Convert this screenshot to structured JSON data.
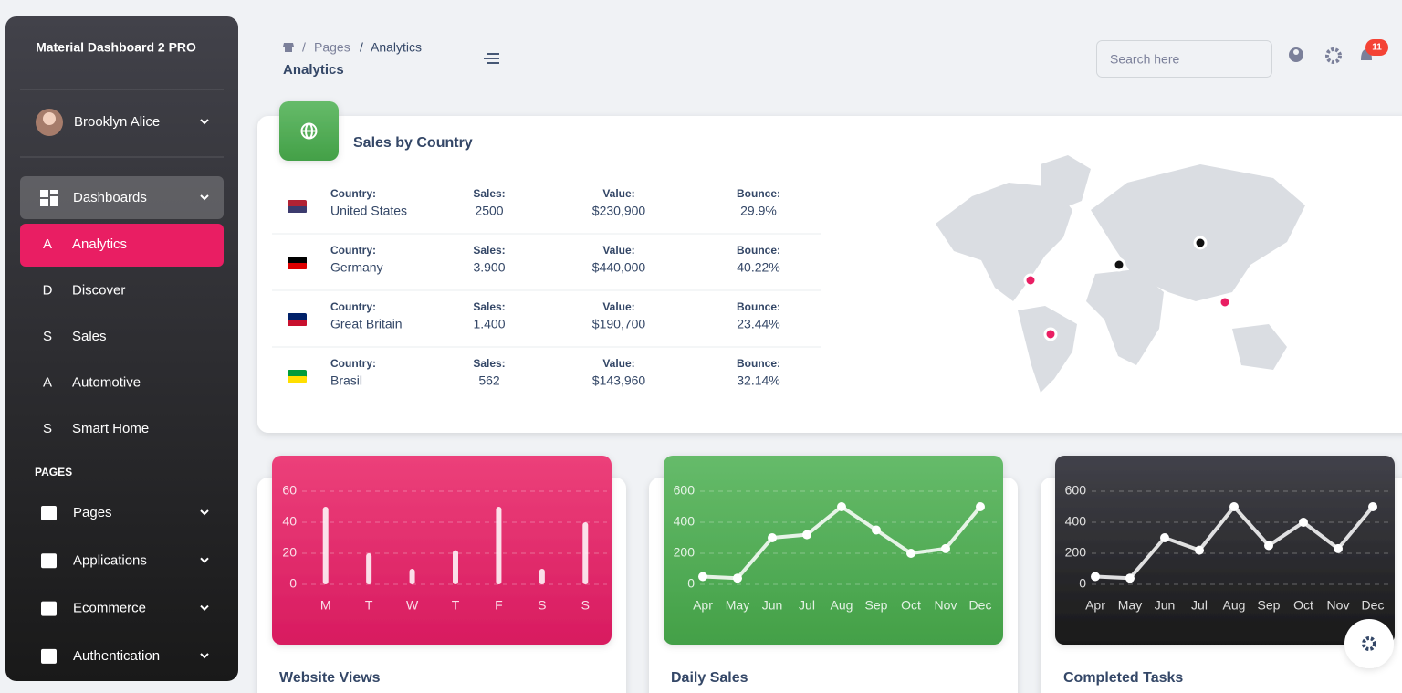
{
  "sidebar": {
    "brand": "Material Dashboard 2 PRO",
    "user": "Brooklyn Alice",
    "group": "Dashboards",
    "dashboards": [
      {
        "letter": "A",
        "label": "Analytics"
      },
      {
        "letter": "D",
        "label": "Discover"
      },
      {
        "letter": "S",
        "label": "Sales"
      },
      {
        "letter": "A",
        "label": "Automotive"
      },
      {
        "letter": "S",
        "label": "Smart Home"
      }
    ],
    "section": "PAGES",
    "pages": [
      "Pages",
      "Applications",
      "Ecommerce",
      "Authentication"
    ]
  },
  "header": {
    "separator": "/",
    "breadcrumb": [
      "Pages",
      "Analytics"
    ],
    "title": "Analytics",
    "search_placeholder": "Search here",
    "notifications": "11"
  },
  "sales_by_country": {
    "title": "Sales by Country",
    "column_labels": {
      "country": "Country:",
      "sales": "Sales:",
      "value": "Value:",
      "bounce": "Bounce:"
    },
    "rows": [
      {
        "country": "United States",
        "sales": "2500",
        "value": "$230,900",
        "bounce": "29.9%"
      },
      {
        "country": "Germany",
        "sales": "3.900",
        "value": "$440,000",
        "bounce": "40.22%"
      },
      {
        "country": "Great Britain",
        "sales": "1.400",
        "value": "$190,700",
        "bounce": "23.44%"
      },
      {
        "country": "Brasil",
        "sales": "562",
        "value": "$143,960",
        "bounce": "32.14%"
      }
    ]
  },
  "chart_data": [
    {
      "type": "bar",
      "title": "Website Views",
      "color": "#ffffff",
      "grid": true,
      "categories": [
        "M",
        "T",
        "W",
        "T",
        "F",
        "S",
        "S"
      ],
      "values": [
        50,
        20,
        10,
        22,
        50,
        10,
        40
      ],
      "ylim": [
        0,
        60
      ],
      "yticks": [
        0,
        20,
        40,
        60
      ]
    },
    {
      "type": "line",
      "title": "Daily Sales",
      "color": "#ffffff",
      "grid": true,
      "categories": [
        "Apr",
        "May",
        "Jun",
        "Jul",
        "Aug",
        "Sep",
        "Oct",
        "Nov",
        "Dec"
      ],
      "values": [
        50,
        40,
        300,
        320,
        500,
        350,
        200,
        230,
        500
      ],
      "ylim": [
        0,
        600
      ],
      "yticks": [
        0,
        200,
        400,
        600
      ]
    },
    {
      "type": "line",
      "title": "Completed Tasks",
      "color": "#ffffff",
      "grid": true,
      "categories": [
        "Apr",
        "May",
        "Jun",
        "Jul",
        "Aug",
        "Sep",
        "Oct",
        "Nov",
        "Dec"
      ],
      "values": [
        50,
        40,
        300,
        220,
        500,
        250,
        400,
        230,
        500
      ],
      "ylim": [
        0,
        600
      ],
      "yticks": [
        0,
        200,
        400,
        600
      ]
    }
  ]
}
